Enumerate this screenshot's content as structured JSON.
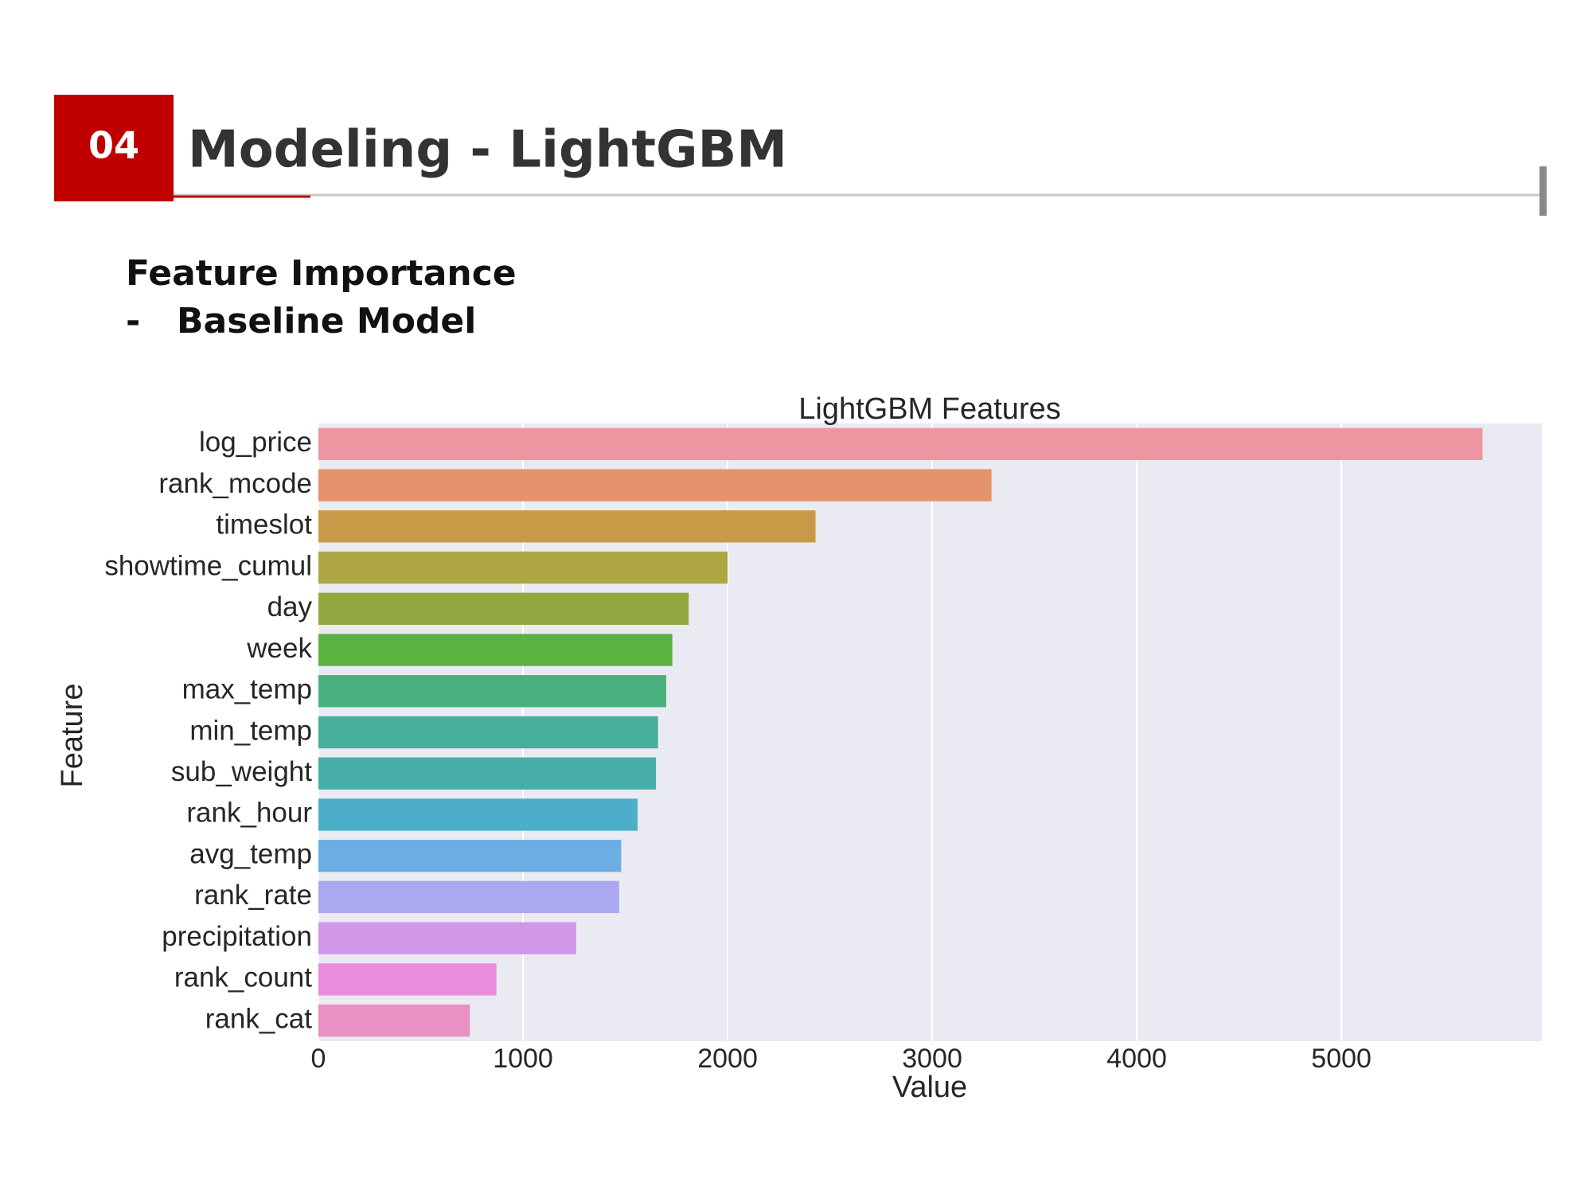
{
  "header": {
    "number": "04",
    "title": "Modeling - LightGBM"
  },
  "subtitle": {
    "line1": "Feature Importance",
    "dash": "-",
    "line2": "Baseline Model"
  },
  "chart_data": {
    "type": "barh",
    "title": "LightGBM Features",
    "x_label": "Value",
    "y_label": "Feature",
    "categories": [
      "log_price",
      "rank_mcode",
      "timeslot",
      "showtime_cumul",
      "day",
      "week",
      "max_temp",
      "min_temp",
      "sub_weight",
      "rank_hour",
      "avg_temp",
      "rank_rate",
      "precipitation",
      "rank_count",
      "rank_cat"
    ],
    "values": [
      5690,
      3290,
      2430,
      2000,
      1810,
      1730,
      1700,
      1660,
      1650,
      1560,
      1480,
      1470,
      1260,
      870,
      740
    ],
    "colors": [
      "#ec96a2",
      "#e4936d",
      "#c89a47",
      "#ada643",
      "#92a840",
      "#5bb23e",
      "#48b07c",
      "#47af9a",
      "#49ada9",
      "#4caec8",
      "#6caee4",
      "#aaa9ef",
      "#d198ea",
      "#ea8ddf",
      "#e991c2"
    ],
    "xlim": [
      0,
      5980
    ],
    "xticks": [
      0,
      1000,
      2000,
      3000,
      4000,
      5000
    ],
    "grid": true
  }
}
